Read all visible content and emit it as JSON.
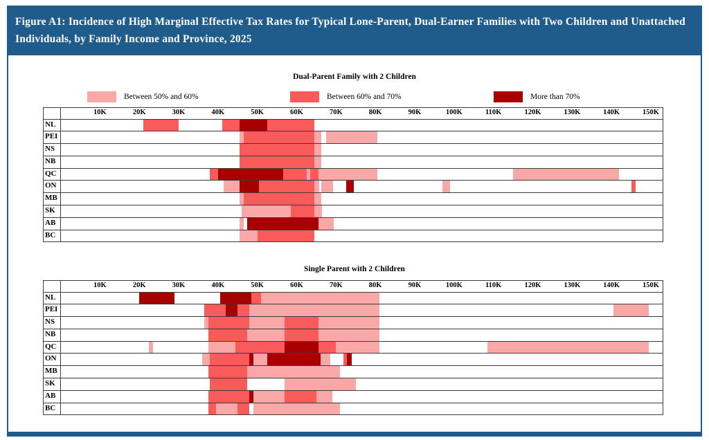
{
  "page": {
    "header_title": "Figure A1: Incidence of High Marginal Effective Tax Rates for Typical Lone-Parent, Dual-Earner Families with Two Children and Unattached Individuals, by Family Income and Province, 2025",
    "colors": {
      "header_blue": "#1F5C8B",
      "band_light": "#F9A7A7",
      "band_mid": "#F95A5A",
      "band_dark": "#A80000",
      "grid_border": "#3C3C3C"
    }
  },
  "legend": {
    "items": [
      {
        "label": "Between 50% and 60%",
        "color_key": "light"
      },
      {
        "label": "Between 60% and 70%",
        "color_key": "mid"
      },
      {
        "label": "More than 70%",
        "color_key": "dark"
      }
    ]
  },
  "axis": {
    "tick_labels": [
      "10K",
      "20K",
      "30K",
      "40K",
      "50K",
      "60K",
      "70K",
      "80K",
      "90K",
      "100K",
      "110K",
      "120K",
      "130K",
      "140K",
      "150K"
    ],
    "tick_values_k": [
      10,
      20,
      30,
      40,
      50,
      60,
      70,
      80,
      90,
      100,
      110,
      120,
      130,
      140,
      150
    ],
    "max_k": 153,
    "unit": "family income, thousands of dollars"
  },
  "chart_data": [
    {
      "type": "heatmap",
      "title": "Dual-Parent Family with 2 Children",
      "levels": {
        "light": "Between 50% and 60%",
        "mid": "Between 60% and 70%",
        "dark": "More than 70%"
      },
      "rows": [
        {
          "province": "NL",
          "segments": [
            {
              "from_k": 21,
              "to_k": 30,
              "level": "mid"
            },
            {
              "from_k": 41,
              "to_k": 45.5,
              "level": "mid"
            },
            {
              "from_k": 45.5,
              "to_k": 52.5,
              "level": "dark"
            },
            {
              "from_k": 52.5,
              "to_k": 64.5,
              "level": "mid"
            }
          ]
        },
        {
          "province": "PEI",
          "segments": [
            {
              "from_k": 45.5,
              "to_k": 46.5,
              "level": "light"
            },
            {
              "from_k": 46.5,
              "to_k": 64.5,
              "level": "mid"
            },
            {
              "from_k": 64.5,
              "to_k": 66.3,
              "level": "light"
            },
            {
              "from_k": 67.5,
              "to_k": 80.5,
              "level": "light"
            }
          ]
        },
        {
          "province": "NS",
          "segments": [
            {
              "from_k": 45.5,
              "to_k": 64.5,
              "level": "mid"
            },
            {
              "from_k": 64.5,
              "to_k": 66.3,
              "level": "light"
            }
          ]
        },
        {
          "province": "NB",
          "segments": [
            {
              "from_k": 45.5,
              "to_k": 64.5,
              "level": "mid"
            },
            {
              "from_k": 64.5,
              "to_k": 66.3,
              "level": "light"
            }
          ]
        },
        {
          "province": "QC",
          "segments": [
            {
              "from_k": 38,
              "to_k": 40,
              "level": "mid"
            },
            {
              "from_k": 40,
              "to_k": 56.5,
              "level": "dark"
            },
            {
              "from_k": 56.5,
              "to_k": 62.5,
              "level": "mid"
            },
            {
              "from_k": 62.5,
              "to_k": 63.5,
              "level": "light"
            },
            {
              "from_k": 63.5,
              "to_k": 65.5,
              "level": "mid"
            },
            {
              "from_k": 65.5,
              "to_k": 80.5,
              "level": "light"
            },
            {
              "from_k": 115,
              "to_k": 142,
              "level": "light"
            }
          ]
        },
        {
          "province": "ON",
          "segments": [
            {
              "from_k": 41.5,
              "to_k": 45.5,
              "level": "light"
            },
            {
              "from_k": 45.5,
              "to_k": 50.5,
              "level": "dark"
            },
            {
              "from_k": 50.5,
              "to_k": 64.5,
              "level": "mid"
            },
            {
              "from_k": 64.5,
              "to_k": 65.7,
              "level": "light"
            },
            {
              "from_k": 66.2,
              "to_k": 69.3,
              "level": "light"
            },
            {
              "from_k": 72.5,
              "to_k": 74.5,
              "level": "dark"
            },
            {
              "from_k": 97,
              "to_k": 99,
              "level": "light"
            },
            {
              "from_k": 145,
              "to_k": 146.2,
              "level": "mid"
            }
          ]
        },
        {
          "province": "MB",
          "segments": [
            {
              "from_k": 45.5,
              "to_k": 46.5,
              "level": "light"
            },
            {
              "from_k": 46.5,
              "to_k": 64.5,
              "level": "mid"
            },
            {
              "from_k": 64.5,
              "to_k": 66.3,
              "level": "light"
            }
          ]
        },
        {
          "province": "SK",
          "segments": [
            {
              "from_k": 46,
              "to_k": 58.5,
              "level": "light"
            },
            {
              "from_k": 58.5,
              "to_k": 64.5,
              "level": "mid"
            },
            {
              "from_k": 64.5,
              "to_k": 66.5,
              "level": "light"
            }
          ]
        },
        {
          "province": "AB",
          "segments": [
            {
              "from_k": 45.5,
              "to_k": 46.5,
              "level": "light"
            },
            {
              "from_k": 47.5,
              "to_k": 65.5,
              "level": "dark"
            },
            {
              "from_k": 65.5,
              "to_k": 69.5,
              "level": "light"
            }
          ]
        },
        {
          "province": "BC",
          "segments": [
            {
              "from_k": 45.5,
              "to_k": 50,
              "level": "light"
            },
            {
              "from_k": 50,
              "to_k": 64.5,
              "level": "mid"
            }
          ]
        }
      ]
    },
    {
      "type": "heatmap",
      "title": "Single Parent with 2 Children",
      "levels": {
        "light": "Between 50% and 60%",
        "mid": "Between 60% and 70%",
        "dark": "More than 70%"
      },
      "rows": [
        {
          "province": "NL",
          "segments": [
            {
              "from_k": 20,
              "to_k": 29,
              "level": "dark"
            },
            {
              "from_k": 40.5,
              "to_k": 48.5,
              "level": "dark"
            },
            {
              "from_k": 48.5,
              "to_k": 51,
              "level": "mid"
            },
            {
              "from_k": 51,
              "to_k": 81,
              "level": "light"
            }
          ]
        },
        {
          "province": "PEI",
          "segments": [
            {
              "from_k": 36.5,
              "to_k": 42,
              "level": "mid"
            },
            {
              "from_k": 42,
              "to_k": 45,
              "level": "dark"
            },
            {
              "from_k": 45,
              "to_k": 48,
              "level": "mid"
            },
            {
              "from_k": 48,
              "to_k": 81,
              "level": "light"
            },
            {
              "from_k": 140.5,
              "to_k": 149.5,
              "level": "light"
            }
          ]
        },
        {
          "province": "NS",
          "segments": [
            {
              "from_k": 36.5,
              "to_k": 37.5,
              "level": "light"
            },
            {
              "from_k": 37.5,
              "to_k": 48,
              "level": "mid"
            },
            {
              "from_k": 48,
              "to_k": 57,
              "level": "light"
            },
            {
              "from_k": 57,
              "to_k": 65.5,
              "level": "mid"
            },
            {
              "from_k": 65.5,
              "to_k": 81,
              "level": "light"
            }
          ]
        },
        {
          "province": "NB",
          "segments": [
            {
              "from_k": 37.5,
              "to_k": 47.5,
              "level": "mid"
            },
            {
              "from_k": 47.5,
              "to_k": 57,
              "level": "light"
            },
            {
              "from_k": 57,
              "to_k": 65.5,
              "level": "mid"
            },
            {
              "from_k": 65.5,
              "to_k": 81,
              "level": "light"
            }
          ]
        },
        {
          "province": "QC",
          "segments": [
            {
              "from_k": 22.5,
              "to_k": 23.5,
              "level": "light"
            },
            {
              "from_k": 37.5,
              "to_k": 44.5,
              "level": "light"
            },
            {
              "from_k": 44.5,
              "to_k": 57,
              "level": "mid"
            },
            {
              "from_k": 57,
              "to_k": 65.5,
              "level": "dark"
            },
            {
              "from_k": 65.5,
              "to_k": 70,
              "level": "mid"
            },
            {
              "from_k": 70,
              "to_k": 81,
              "level": "light"
            },
            {
              "from_k": 108.5,
              "to_k": 149.5,
              "level": "light"
            }
          ]
        },
        {
          "province": "ON",
          "segments": [
            {
              "from_k": 36,
              "to_k": 38,
              "level": "light"
            },
            {
              "from_k": 38,
              "to_k": 48,
              "level": "mid"
            },
            {
              "from_k": 48,
              "to_k": 49,
              "level": "dark"
            },
            {
              "from_k": 49,
              "to_k": 52.5,
              "level": "light"
            },
            {
              "from_k": 52.5,
              "to_k": 66,
              "level": "dark"
            },
            {
              "from_k": 66,
              "to_k": 68.5,
              "level": "light"
            },
            {
              "from_k": 71.8,
              "to_k": 72.8,
              "level": "mid"
            },
            {
              "from_k": 72.8,
              "to_k": 74,
              "level": "dark"
            }
          ]
        },
        {
          "province": "MB",
          "segments": [
            {
              "from_k": 37.5,
              "to_k": 47.5,
              "level": "mid"
            },
            {
              "from_k": 47.5,
              "to_k": 71,
              "level": "light"
            }
          ]
        },
        {
          "province": "SK",
          "segments": [
            {
              "from_k": 38,
              "to_k": 47.5,
              "level": "mid"
            },
            {
              "from_k": 57,
              "to_k": 75,
              "level": "light"
            }
          ]
        },
        {
          "province": "AB",
          "segments": [
            {
              "from_k": 37.5,
              "to_k": 48,
              "level": "mid"
            },
            {
              "from_k": 48,
              "to_k": 49,
              "level": "dark"
            },
            {
              "from_k": 49,
              "to_k": 57,
              "level": "light"
            },
            {
              "from_k": 57,
              "to_k": 65,
              "level": "mid"
            },
            {
              "from_k": 65,
              "to_k": 69,
              "level": "light"
            }
          ]
        },
        {
          "province": "BC",
          "segments": [
            {
              "from_k": 37.5,
              "to_k": 39.5,
              "level": "mid"
            },
            {
              "from_k": 39.5,
              "to_k": 45,
              "level": "light"
            },
            {
              "from_k": 45,
              "to_k": 48,
              "level": "mid"
            },
            {
              "from_k": 49,
              "to_k": 71,
              "level": "light"
            }
          ]
        }
      ]
    }
  ]
}
